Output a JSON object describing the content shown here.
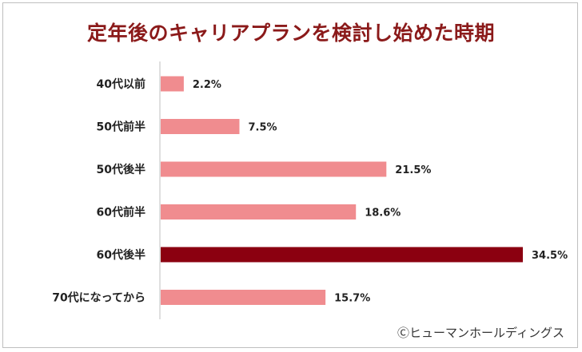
{
  "chart_data": {
    "type": "bar",
    "orientation": "horizontal",
    "title": "定年後のキャリアプランを検討し始めた時期",
    "categories": [
      "40代以前",
      "50代前半",
      "50代後半",
      "60代前半",
      "60代後半",
      "70代になってから"
    ],
    "values": [
      2.2,
      7.5,
      21.5,
      18.6,
      34.5,
      15.7
    ],
    "value_labels": [
      "2.2%",
      "7.5%",
      "21.5%",
      "18.6%",
      "34.5%",
      "15.7%"
    ],
    "highlight_index": 4,
    "xlim": [
      0,
      34.5
    ],
    "grid": false,
    "legend": "none"
  },
  "colors": {
    "bar": "#f08c8f",
    "highlight": "#8b0010",
    "title": "#8b1a1a"
  },
  "source": "Ⓒヒューマンホールディングス"
}
